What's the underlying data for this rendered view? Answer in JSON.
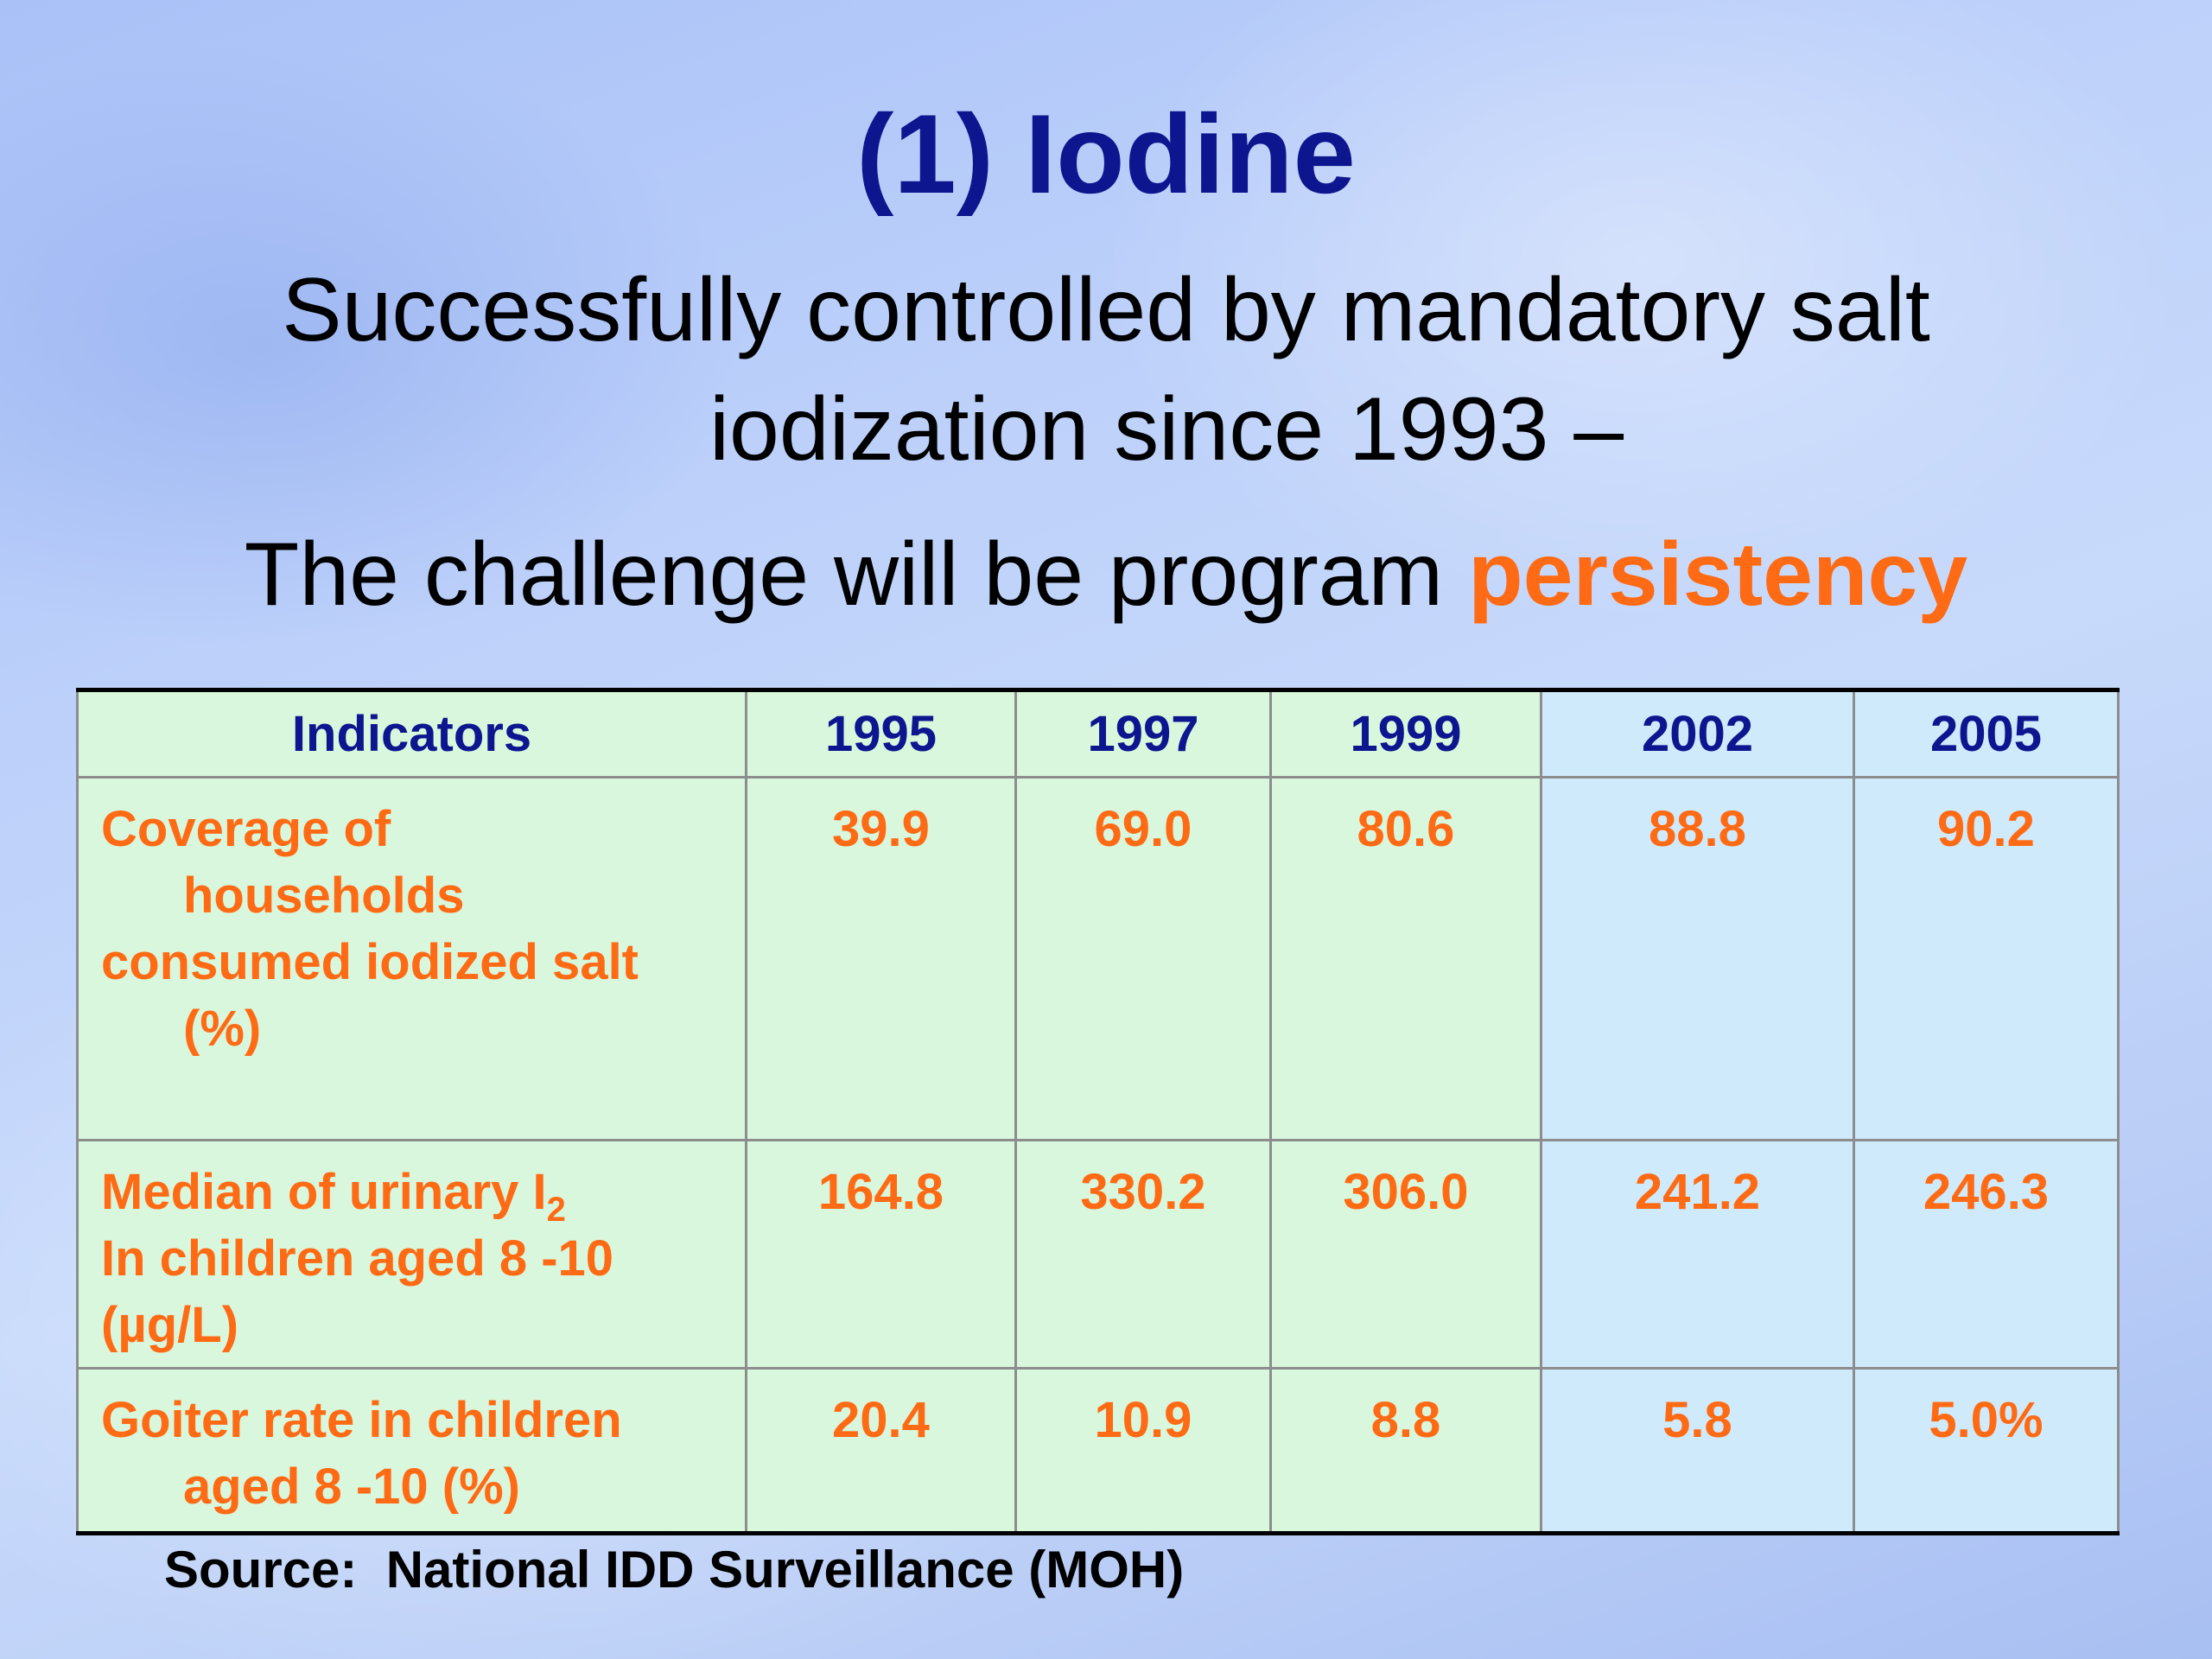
{
  "slide": {
    "title": "(1) Iodine",
    "subtitle_line1": "Successfully controlled by mandatory salt",
    "subtitle_line2": "iodization since 1993 –",
    "challenge_text": "The challenge will be program ",
    "challenge_highlight": "persistency",
    "source": "Source:  National IDD Surveillance (MOH)"
  },
  "table": {
    "header": [
      "Indicators",
      "1995",
      "1997",
      "1999",
      "2002",
      "2005"
    ],
    "rows": [
      {
        "indicator_lines": [
          "Coverage of",
          "households",
          "consumed iodized salt",
          "(%)"
        ],
        "values": [
          "39.9",
          "69.0",
          "80.6",
          "88.8",
          "90.2"
        ]
      },
      {
        "indicator_line1_prefix": "Median of urinary I",
        "indicator_line1_sub": "2",
        "indicator_lines": [
          "In children aged 8 -10",
          "(µg/L)"
        ],
        "values": [
          "164.8",
          "330.2",
          "306.0",
          "241.2",
          "246.3"
        ]
      },
      {
        "indicator_lines": [
          "Goiter rate in children",
          "aged 8 -10 (%)"
        ],
        "values": [
          "20.4",
          "10.9",
          "8.8",
          "5.8",
          "5.0%"
        ]
      }
    ]
  },
  "colors": {
    "title": "#0d168f",
    "highlight": "#ff6a14",
    "table_green": "#d8f7dd",
    "table_blue": "#cfeafb"
  }
}
